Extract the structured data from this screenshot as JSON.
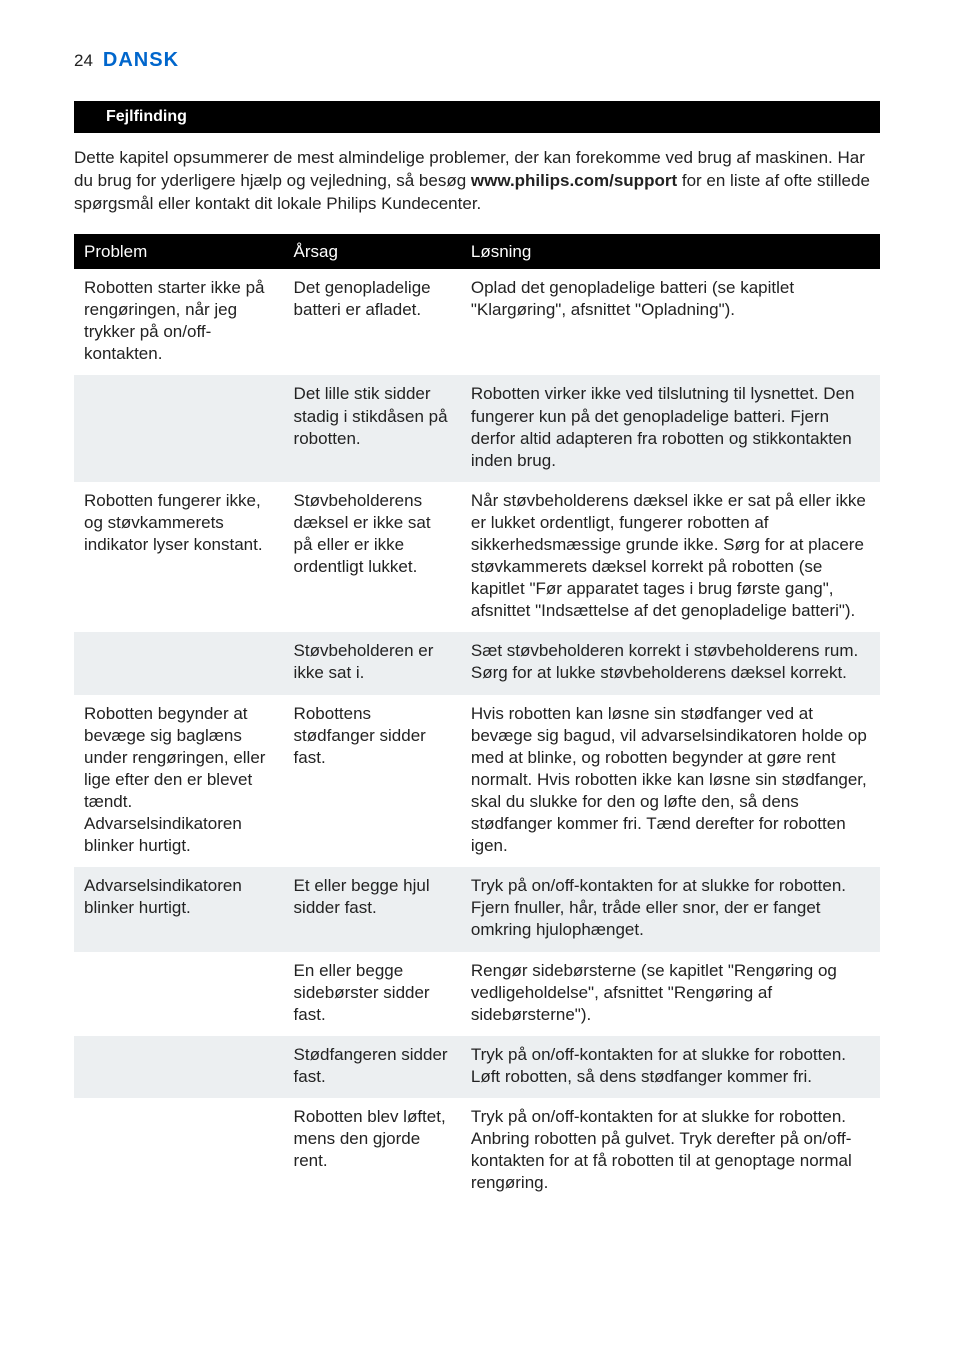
{
  "header": {
    "page_number": "24",
    "language": "DANSK"
  },
  "section_title": "Fejlfinding",
  "intro": {
    "part1": "Dette kapitel opsummerer de mest almindelige problemer, der kan forekomme ved brug af maskinen. Har du brug for yderligere hjælp og vejledning, så besøg ",
    "bold": "www.philips.com/support",
    "part2": " for en liste af ofte stillede spørgsmål eller kontakt dit lokale Philips Kundecenter."
  },
  "table": {
    "headers": {
      "problem": "Problem",
      "cause": "Årsag",
      "solution": "Løsning"
    },
    "rows": [
      {
        "problem": "Robotten starter ikke på rengøringen, når jeg trykker på on/off-kontakten.",
        "cause": "Det genopladelige batteri er afladet.",
        "solution": "Oplad det genopladelige batteri (se kapitlet \"Klargøring\", afsnittet \"Opladning\")."
      },
      {
        "problem": "",
        "cause": "Det lille stik sidder stadig i stikdåsen på robotten.",
        "solution": "Robotten virker ikke ved tilslutning til lysnettet. Den fungerer kun på det genopladelige batteri. Fjern derfor altid adapteren fra robotten og stikkontakten inden brug."
      },
      {
        "problem": "Robotten fungerer ikke, og støvkammerets indikator lyser konstant.",
        "cause": "Støvbeholderens dæksel er ikke sat på eller er ikke ordentligt lukket.",
        "solution": "Når støvbeholderens dæksel ikke er sat på eller ikke er lukket ordentligt, fungerer robotten af sikkerhedsmæssige grunde ikke. Sørg for at placere støvkammerets dæksel korrekt på robotten (se kapitlet \"Før apparatet tages i brug første gang\", afsnittet \"Indsættelse af det genopladelige batteri\")."
      },
      {
        "problem": "",
        "cause": "Støvbeholderen er ikke sat i.",
        "solution": "Sæt støvbeholderen korrekt i støvbeholderens rum. Sørg for at lukke støvbeholderens dæksel korrekt."
      },
      {
        "problem": "Robotten begynder at bevæge sig baglæns under rengøringen, eller lige efter den er blevet tændt. Advarselsindikatoren blinker hurtigt.",
        "cause": "Robottens stødfanger sidder fast.",
        "solution": "Hvis robotten kan løsne sin stødfanger ved at bevæge sig bagud, vil advarselsindikatoren holde op med at blinke, og robotten begynder at gøre rent normalt. Hvis robotten ikke kan løsne sin stødfanger, skal du slukke for den og løfte den, så dens stødfanger kommer fri. Tænd derefter for robotten igen."
      },
      {
        "problem": "Advarselsindikatoren blinker hurtigt.",
        "cause": "Et eller begge hjul sidder fast.",
        "solution": "Tryk på on/off-kontakten for at slukke for robotten. Fjern fnuller, hår, tråde eller snor, der er fanget omkring hjulophænget."
      },
      {
        "problem": "",
        "cause": "En eller begge sidebørster sidder fast.",
        "solution": "Rengør sidebørsterne (se kapitlet \"Rengøring og vedligeholdelse\", afsnittet \"Rengøring af sidebørsterne\")."
      },
      {
        "problem": "",
        "cause": "Stødfangeren sidder fast.",
        "solution": "Tryk på on/off-kontakten for at slukke for robotten. Løft robotten, så dens stødfanger kommer fri."
      },
      {
        "problem": "",
        "cause": "Robotten blev løftet, mens den gjorde rent.",
        "solution": "Tryk på on/off-kontakten for at slukke for robotten. Anbring robotten på gulvet. Tryk derefter på on/off-kontakten for at få robotten til at genoptage normal rengøring."
      }
    ]
  },
  "colors": {
    "accent": "#0066cc",
    "bar_bg": "#000000",
    "bar_text": "#ffffff",
    "row_alt_bg": "#eceff1",
    "text": "#222222",
    "page_bg": "#ffffff"
  }
}
